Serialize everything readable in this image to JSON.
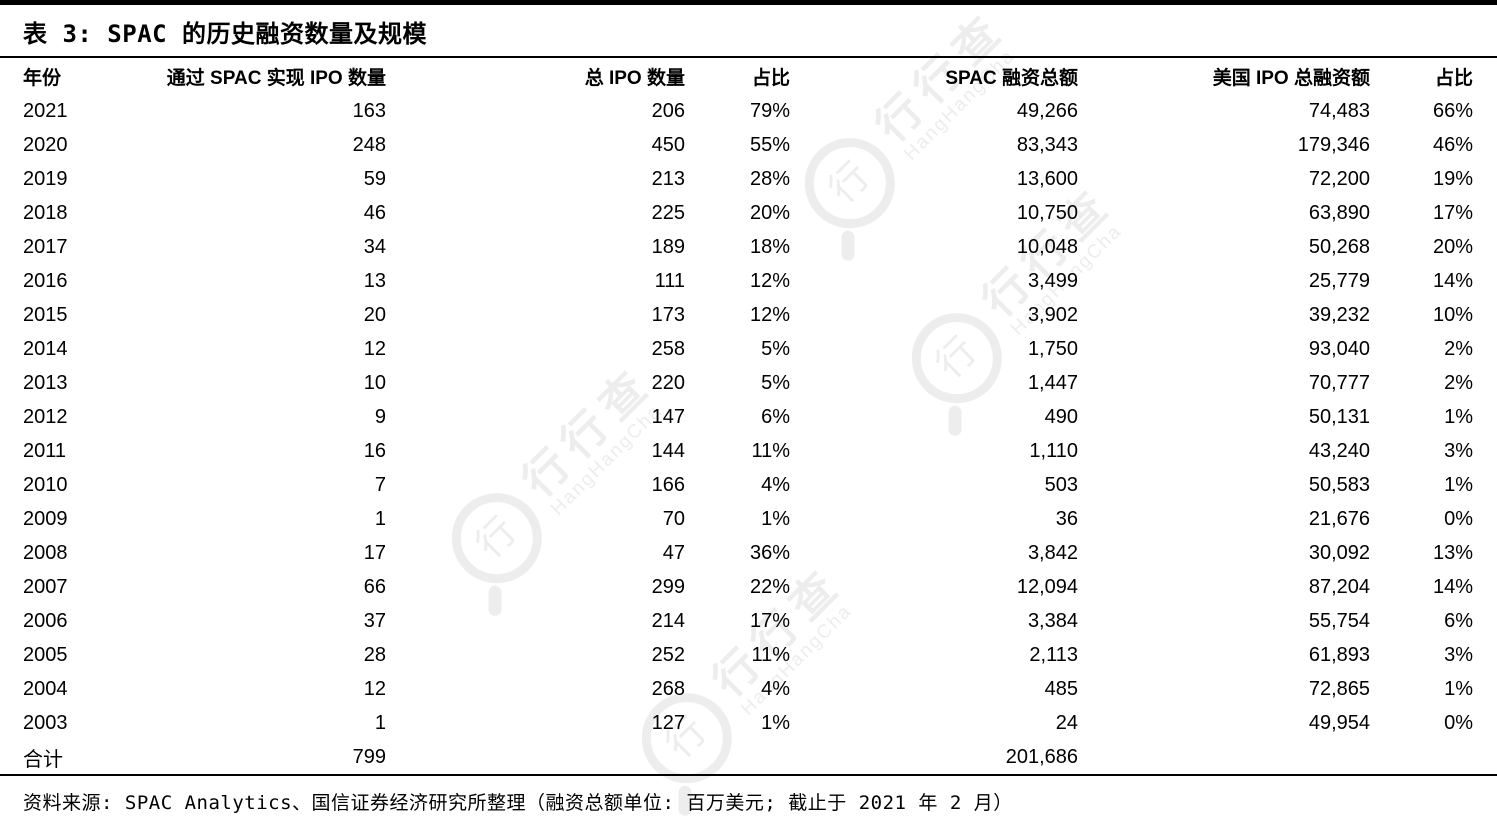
{
  "title": "表 3: SPAC 的历史融资数量及规模",
  "table": {
    "columns": [
      "年份",
      "通过 SPAC 实现 IPO 数量",
      "总 IPO 数量",
      "占比",
      "SPAC 融资总额",
      "美国 IPO 总融资额",
      "占比"
    ],
    "rows": [
      [
        "2021",
        "163",
        "206",
        "79%",
        "49,266",
        "74,483",
        "66%"
      ],
      [
        "2020",
        "248",
        "450",
        "55%",
        "83,343",
        "179,346",
        "46%"
      ],
      [
        "2019",
        "59",
        "213",
        "28%",
        "13,600",
        "72,200",
        "19%"
      ],
      [
        "2018",
        "46",
        "225",
        "20%",
        "10,750",
        "63,890",
        "17%"
      ],
      [
        "2017",
        "34",
        "189",
        "18%",
        "10,048",
        "50,268",
        "20%"
      ],
      [
        "2016",
        "13",
        "111",
        "12%",
        "3,499",
        "25,779",
        "14%"
      ],
      [
        "2015",
        "20",
        "173",
        "12%",
        "3,902",
        "39,232",
        "10%"
      ],
      [
        "2014",
        "12",
        "258",
        "5%",
        "1,750",
        "93,040",
        "2%"
      ],
      [
        "2013",
        "10",
        "220",
        "5%",
        "1,447",
        "70,777",
        "2%"
      ],
      [
        "2012",
        "9",
        "147",
        "6%",
        "490",
        "50,131",
        "1%"
      ],
      [
        "2011",
        "16",
        "144",
        "11%",
        "1,110",
        "43,240",
        "3%"
      ],
      [
        "2010",
        "7",
        "166",
        "4%",
        "503",
        "50,583",
        "1%"
      ],
      [
        "2009",
        "1",
        "70",
        "1%",
        "36",
        "21,676",
        "0%"
      ],
      [
        "2008",
        "17",
        "47",
        "36%",
        "3,842",
        "30,092",
        "13%"
      ],
      [
        "2007",
        "66",
        "299",
        "22%",
        "12,094",
        "87,204",
        "14%"
      ],
      [
        "2006",
        "37",
        "214",
        "17%",
        "3,384",
        "55,754",
        "6%"
      ],
      [
        "2005",
        "28",
        "252",
        "11%",
        "2,113",
        "61,893",
        "3%"
      ],
      [
        "2004",
        "12",
        "268",
        "4%",
        "485",
        "72,865",
        "1%"
      ],
      [
        "2003",
        "1",
        "127",
        "1%",
        "24",
        "49,954",
        "0%"
      ]
    ],
    "total_row": [
      "合计",
      "799",
      "",
      "",
      "201,686",
      "",
      ""
    ]
  },
  "footnote": "资料来源: SPAC Analytics、国信证券经济研究所整理（融资总额单位: 百万美元; 截止于 2021 年 2 月）",
  "watermark": {
    "cjk": "行行查",
    "latin": "HangHangCha",
    "logo_char": "行",
    "color": "#ededed"
  },
  "colors": {
    "text": "#000000",
    "background": "#ffffff",
    "rule": "#000000"
  }
}
